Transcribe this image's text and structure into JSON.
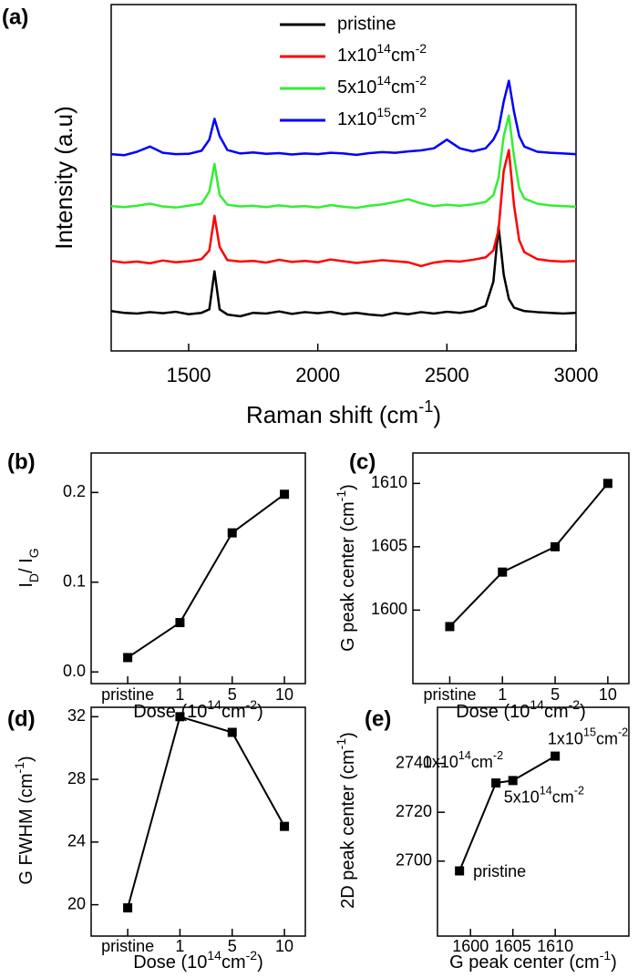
{
  "chart_data": [
    {
      "type": "line",
      "panel_label": "(a)",
      "x": [
        1200,
        1250,
        1300,
        1350,
        1400,
        1450,
        1500,
        1550,
        1580,
        1600,
        1620,
        1650,
        1700,
        1750,
        1800,
        1850,
        1900,
        1950,
        2000,
        2050,
        2100,
        2150,
        2200,
        2250,
        2300,
        2350,
        2400,
        2450,
        2500,
        2550,
        2600,
        2650,
        2680,
        2700,
        2720,
        2740,
        2760,
        2780,
        2800,
        2850,
        2900,
        2950,
        3000
      ],
      "series": [
        {
          "name": "pristine",
          "color": "#000000",
          "values": [
            11.5,
            11,
            10.8,
            11.2,
            10.9,
            11.3,
            10.6,
            11,
            12,
            23,
            12,
            10.5,
            10,
            11,
            10.8,
            11.4,
            10.7,
            11.2,
            10.9,
            11.3,
            10.6,
            11,
            10.5,
            10.2,
            11,
            10.6,
            11.2,
            10.8,
            11.3,
            11,
            11.5,
            13,
            20,
            36,
            22,
            15,
            12.5,
            12,
            11.5,
            11.2,
            11,
            10.8,
            11
          ]
        },
        {
          "name": [
            {
              "text": "1x10"
            },
            {
              "text": "14",
              "shift": "sup"
            },
            {
              "text": "cm"
            },
            {
              "text": "-2",
              "shift": "sup"
            }
          ],
          "color": "#ff0000",
          "values": [
            26,
            25.5,
            25.8,
            25.3,
            26.1,
            25.6,
            25.9,
            26.5,
            29,
            39,
            30,
            26.2,
            25.8,
            26,
            25.5,
            26.3,
            25.7,
            26,
            25.6,
            26.4,
            25.9,
            25.4,
            25.8,
            26.2,
            25.9,
            25.6,
            24.5,
            25.5,
            26,
            25.8,
            26.3,
            27,
            29,
            35,
            52,
            58,
            42,
            32,
            28.5,
            26.5,
            26,
            25.8,
            26
          ]
        },
        {
          "name": [
            {
              "text": "5x10"
            },
            {
              "text": "14",
              "shift": "sup"
            },
            {
              "text": "cm"
            },
            {
              "text": "-2",
              "shift": "sup"
            }
          ],
          "color": "#33ee33",
          "values": [
            41.8,
            41.5,
            41.9,
            42.5,
            41.7,
            41.4,
            41.9,
            42.5,
            46,
            54,
            45,
            42.2,
            41.7,
            41.9,
            41.5,
            42,
            41.6,
            41.8,
            41.4,
            42.1,
            41.6,
            41.3,
            41.9,
            42.3,
            43,
            43.8,
            42.6,
            41.8,
            42.2,
            41.9,
            42.3,
            43,
            45,
            50,
            62,
            68,
            56,
            47,
            44,
            42.5,
            42,
            41.8,
            41.6
          ]
        },
        {
          "name": [
            {
              "text": "1x10"
            },
            {
              "text": "15",
              "shift": "sup"
            },
            {
              "text": "cm"
            },
            {
              "text": "-2",
              "shift": "sup"
            }
          ],
          "color": "#0000ff",
          "values": [
            56.8,
            56.5,
            57.5,
            59,
            57.2,
            56.8,
            56.9,
            57.8,
            61,
            67,
            62,
            58,
            57,
            57.3,
            56.9,
            57.1,
            56.7,
            57,
            56.8,
            57.2,
            57,
            56.6,
            57.1,
            57.4,
            57.2,
            57.6,
            57.9,
            58.5,
            61,
            58.5,
            57.6,
            58.5,
            61,
            64,
            72,
            78,
            69,
            62,
            59,
            57.5,
            57.2,
            57,
            56.8
          ]
        }
      ],
      "xlim": [
        1200,
        3000
      ],
      "xticks": [
        1500,
        2000,
        2500,
        3000
      ],
      "ylim": [
        0,
        100
      ],
      "xlabel": [
        {
          "text": "Raman shift (cm"
        },
        {
          "text": "-1",
          "shift": "sup"
        },
        {
          "text": ")"
        }
      ],
      "ylabel": "Intensity (a.u)",
      "legend": "upper center"
    },
    {
      "type": "line",
      "panel_label": "(b)",
      "marker": "square",
      "color": "#000000",
      "categories": [
        "pristine",
        "1",
        "5",
        "10"
      ],
      "values": [
        0.016,
        0.055,
        0.155,
        0.198
      ],
      "ylim": [
        -0.013,
        0.244
      ],
      "yticks": [
        {
          "value": 0,
          "label": "0.0"
        },
        0.1,
        0.2
      ],
      "xlabel": [
        {
          "text": "Dose (10"
        },
        {
          "text": "14",
          "shift": "sup"
        },
        {
          "text": "cm"
        },
        {
          "text": "-2",
          "shift": "sup"
        },
        {
          "text": ")"
        }
      ],
      "ylabel": [
        {
          "text": "I"
        },
        {
          "text": "D",
          "shift": "sub"
        },
        {
          "text": "/ I"
        },
        {
          "text": "G",
          "shift": "sub"
        }
      ]
    },
    {
      "type": "line",
      "panel_label": "(c)",
      "marker": "square",
      "color": "#000000",
      "categories": [
        "pristine",
        "1",
        "5",
        "10"
      ],
      "values": [
        1598.7,
        1603,
        1605,
        1610
      ],
      "ylim": [
        1594.2,
        1612.4
      ],
      "yticks": [
        1600,
        1605,
        1610
      ],
      "xlabel": [
        {
          "text": "Dose (10"
        },
        {
          "text": "14",
          "shift": "sup"
        },
        {
          "text": "cm"
        },
        {
          "text": "-2",
          "shift": "sup"
        },
        {
          "text": ")"
        }
      ],
      "ylabel": [
        {
          "text": "G peak center (cm"
        },
        {
          "text": "-1",
          "shift": "sup"
        },
        {
          "text": ")"
        }
      ]
    },
    {
      "type": "line",
      "panel_label": "(d)",
      "marker": "square",
      "color": "#000000",
      "categories": [
        "pristine",
        "1",
        "5",
        "10"
      ],
      "values": [
        19.8,
        32,
        31,
        25
      ],
      "ylim": [
        18,
        32.6
      ],
      "yticks": [
        20,
        24,
        28,
        32
      ],
      "xlabel": [
        {
          "text": "Dose (10"
        },
        {
          "text": "14",
          "shift": "sup"
        },
        {
          "text": "cm"
        },
        {
          "text": "-2",
          "shift": "sup"
        },
        {
          "text": ")"
        }
      ],
      "ylabel": [
        {
          "text": "G FWHM (cm"
        },
        {
          "text": "-1",
          "shift": "sup"
        },
        {
          "text": ")"
        }
      ]
    },
    {
      "type": "line",
      "panel_label": "(e)",
      "marker": "square",
      "color": "#000000",
      "x": [
        1598.7,
        1603,
        1605,
        1610
      ],
      "values": [
        2696,
        2732,
        2733,
        2743
      ],
      "xlim": [
        1596.1,
        1618.7
      ],
      "xticks": [
        1600,
        1605,
        1610
      ],
      "ylim": [
        2669.3,
        2763
      ],
      "yticks": [
        2700,
        2720,
        2740
      ],
      "point_labels": [
        "pristine",
        [
          {
            "text": "1x10"
          },
          {
            "text": "14",
            "shift": "sup"
          },
          {
            "text": "cm"
          },
          {
            "text": "-2",
            "shift": "sup"
          }
        ],
        [
          {
            "text": "5x10"
          },
          {
            "text": "14",
            "shift": "sup"
          },
          {
            "text": "cm"
          },
          {
            "text": "-2",
            "shift": "sup"
          }
        ],
        [
          {
            "text": "1x10"
          },
          {
            "text": "15",
            "shift": "sup"
          },
          {
            "text": "cm"
          },
          {
            "text": "-2",
            "shift": "sup"
          }
        ]
      ],
      "xlabel": [
        {
          "text": "G peak center (cm"
        },
        {
          "text": "-1",
          "shift": "sup"
        },
        {
          "text": ")"
        }
      ],
      "ylabel": [
        {
          "text": "2D peak center (cm"
        },
        {
          "text": "-1",
          "shift": "sup"
        },
        {
          "text": ")"
        }
      ]
    }
  ]
}
